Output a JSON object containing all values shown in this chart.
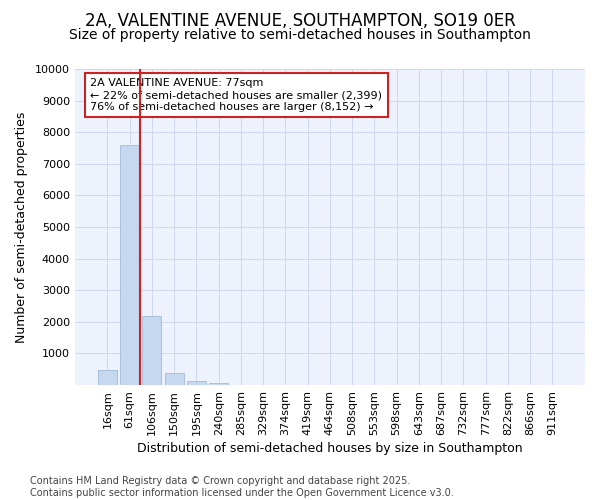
{
  "title_line1": "2A, VALENTINE AVENUE, SOUTHAMPTON, SO19 0ER",
  "title_line2": "Size of property relative to semi-detached houses in Southampton",
  "xlabel": "Distribution of semi-detached houses by size in Southampton",
  "ylabel": "Number of semi-detached properties",
  "categories": [
    "16sqm",
    "61sqm",
    "106sqm",
    "150sqm",
    "195sqm",
    "240sqm",
    "285sqm",
    "329sqm",
    "374sqm",
    "419sqm",
    "464sqm",
    "508sqm",
    "553sqm",
    "598sqm",
    "643sqm",
    "687sqm",
    "732sqm",
    "777sqm",
    "822sqm",
    "866sqm",
    "911sqm"
  ],
  "values": [
    480,
    7580,
    2200,
    380,
    130,
    80,
    0,
    0,
    0,
    0,
    0,
    0,
    0,
    0,
    0,
    0,
    0,
    0,
    0,
    0,
    0
  ],
  "bar_color": "#c5d8f0",
  "bar_edgecolor": "#9fbcd8",
  "annotation_text_line1": "2A VALENTINE AVENUE: 77sqm",
  "annotation_text_line2": "← 22% of semi-detached houses are smaller (2,399)",
  "annotation_text_line3": "76% of semi-detached houses are larger (8,152) →",
  "vline_color": "#cc2222",
  "annotation_box_edgecolor": "#cc2222",
  "annotation_box_facecolor": "#ffffff",
  "grid_color": "#d0d8ec",
  "background_color": "#ffffff",
  "plot_bg_color": "#eef2fc",
  "footer_line1": "Contains HM Land Registry data © Crown copyright and database right 2025.",
  "footer_line2": "Contains public sector information licensed under the Open Government Licence v3.0.",
  "ylim": [
    0,
    10000
  ],
  "yticks": [
    0,
    1000,
    2000,
    3000,
    4000,
    5000,
    6000,
    7000,
    8000,
    9000,
    10000
  ],
  "title_fontsize": 12,
  "subtitle_fontsize": 10,
  "axis_label_fontsize": 9,
  "tick_fontsize": 8,
  "annotation_fontsize": 8,
  "footer_fontsize": 7
}
